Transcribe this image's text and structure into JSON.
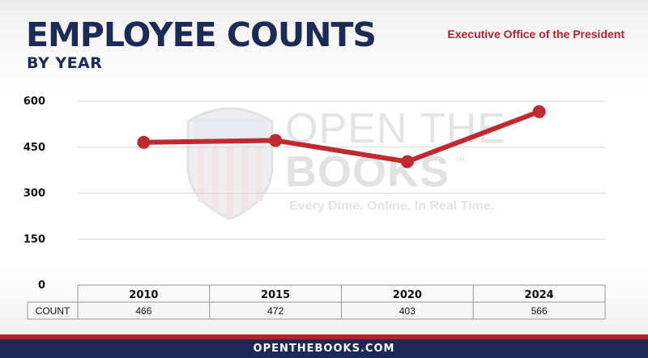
{
  "header": {
    "title": "EMPLOYEE COUNTS",
    "subtitle": "BY YEAR",
    "agency": "Executive Office of the President"
  },
  "watermark": {
    "line1": "OPEN THE",
    "line2": "BOOKS",
    "tm": "TM",
    "tagline": "Every Dime. Online. In Real Time."
  },
  "footer": {
    "url": "OPENTHEBOOKS.COM"
  },
  "colors": {
    "navy": "#1b2a56",
    "red": "#b5242b",
    "line": "#c0292f"
  },
  "chart_data": {
    "type": "line",
    "title": "EMPLOYEE COUNTS",
    "subtitle": "BY YEAR",
    "categories": [
      "2010",
      "2015",
      "2020",
      "2024"
    ],
    "series": [
      {
        "name": "COUNT",
        "values": [
          466,
          472,
          403,
          566
        ]
      }
    ],
    "value_labels": [
      "466",
      "472",
      "403",
      "566"
    ],
    "row_label": "COUNT",
    "ylim": [
      0,
      600
    ],
    "yticks": [
      "0",
      "150",
      "300",
      "450",
      "600"
    ],
    "grid": true,
    "legend": "none"
  }
}
